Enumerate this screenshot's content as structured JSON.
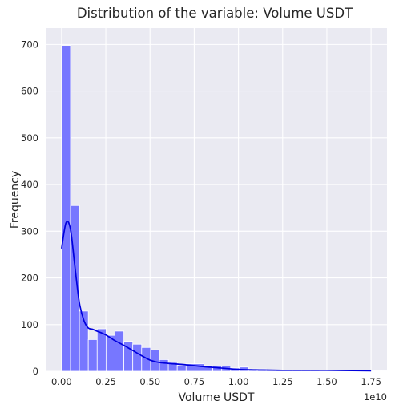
{
  "chart_data": {
    "type": "bar",
    "title": "Distribution of the variable: Volume USDT",
    "xlabel": "Volume USDT",
    "ylabel": "Frequency",
    "x_offset_label": "1e10",
    "xlim": [
      -0.09,
      1.84
    ],
    "ylim": [
      0,
      735
    ],
    "x_ticks": [
      0,
      0.25,
      0.5,
      0.75,
      1.0,
      1.25,
      1.5,
      1.75
    ],
    "x_tick_labels": [
      "0.00",
      "0.25",
      "0.50",
      "0.75",
      "1.00",
      "1.25",
      "1.50",
      "1.75"
    ],
    "y_ticks": [
      0,
      100,
      200,
      300,
      400,
      500,
      600,
      700
    ],
    "y_tick_labels": [
      "0",
      "100",
      "200",
      "300",
      "400",
      "500",
      "600",
      "700"
    ],
    "grid": true,
    "bin_start": 0.0,
    "bin_width": 0.0503,
    "series": [
      {
        "kind": "histogram",
        "values": [
          698,
          355,
          129,
          68,
          91,
          77,
          86,
          64,
          58,
          51,
          46,
          25,
          19,
          13,
          16,
          16,
          12,
          11,
          11,
          7,
          9,
          5,
          5,
          3,
          3,
          2,
          2,
          2,
          2,
          1,
          1,
          1,
          1,
          1,
          1,
          1,
          1,
          0,
          1,
          0,
          0,
          0,
          0,
          0,
          0,
          0,
          0,
          1
        ],
        "color": "#7777ff"
      },
      {
        "kind": "kde",
        "x": [
          0.0,
          0.025,
          0.05,
          0.075,
          0.1,
          0.125,
          0.15,
          0.175,
          0.2,
          0.25,
          0.3,
          0.35,
          0.4,
          0.45,
          0.5,
          0.55,
          0.6,
          0.7,
          0.8,
          0.9,
          1.0,
          1.1,
          1.25,
          1.5,
          1.75
        ],
        "y": [
          263,
          318,
          305,
          225,
          148,
          110,
          93,
          90,
          86,
          78,
          66,
          56,
          45,
          34,
          24,
          19,
          17,
          14,
          10,
          7,
          4,
          3,
          2,
          2,
          1
        ],
        "color": "#0000dd"
      }
    ],
    "colors": {
      "background": "#eaeaf2",
      "grid": "#ffffff",
      "bar_fill": "#7777ff",
      "bar_edge": "#ffffff",
      "kde_line": "#0000dd"
    }
  }
}
